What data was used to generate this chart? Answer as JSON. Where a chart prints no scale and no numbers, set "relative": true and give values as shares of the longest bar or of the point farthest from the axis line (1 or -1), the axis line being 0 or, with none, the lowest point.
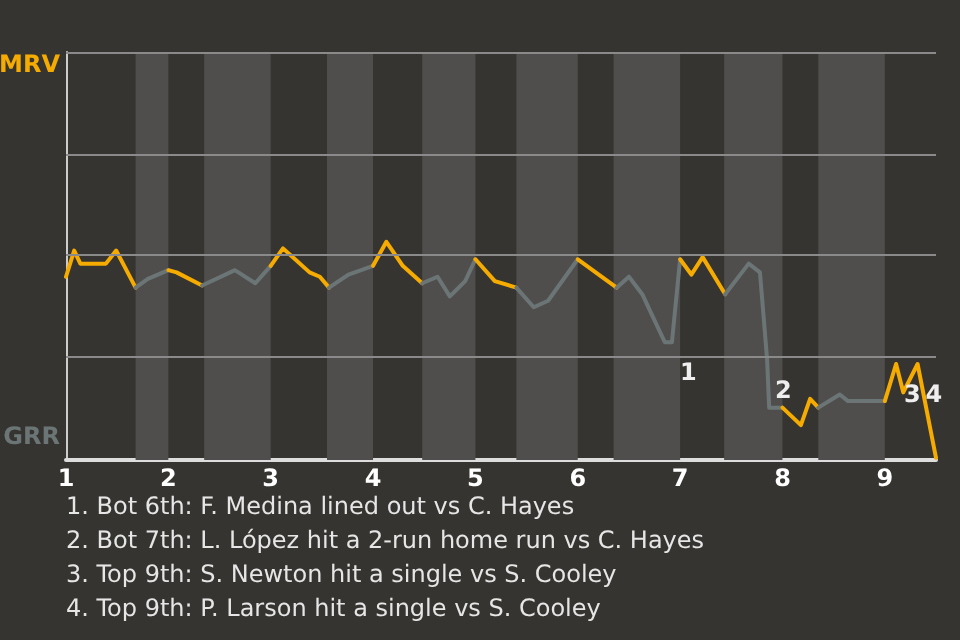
{
  "chart_data": {
    "type": "line",
    "relative": true,
    "xlim": [
      1,
      9.5
    ],
    "xticks": [
      1,
      2,
      3,
      4,
      5,
      6,
      7,
      8,
      9
    ],
    "ref_lines": [
      {
        "axis": "y",
        "value": 0.467,
        "color": "#8a8a8a"
      },
      {
        "axis": "y",
        "value": 0.935,
        "color": "#8a8a8a"
      },
      {
        "axis": "y",
        "value": 1.402,
        "color": "#8a8a8a"
      },
      {
        "axis": "y",
        "value": 1.869,
        "color": "#8a8a8a"
      }
    ],
    "series": [
      {
        "color": "#f5ab00",
        "x": [
          1,
          1.08,
          1.14,
          1.39,
          1.49,
          1.68
        ],
        "values": [
          0.84,
          0.96,
          0.9,
          0.9,
          0.96,
          0.79
        ]
      },
      {
        "color": "#6b7575",
        "x": [
          1.68,
          1.8,
          2
        ],
        "values": [
          0.79,
          0.83,
          0.87
        ]
      },
      {
        "color": "#f5ab00",
        "x": [
          2,
          2.08,
          2.33
        ],
        "values": [
          0.87,
          0.86,
          0.8
        ]
      },
      {
        "color": "#6b7575",
        "x": [
          2.33,
          2.65,
          2.85,
          3
        ],
        "values": [
          0.8,
          0.87,
          0.81,
          0.89
        ]
      },
      {
        "color": "#f5ab00",
        "x": [
          3,
          3.12,
          3.38,
          3.48,
          3.57
        ],
        "values": [
          0.89,
          0.97,
          0.86,
          0.84,
          0.79
        ]
      },
      {
        "color": "#6b7575",
        "x": [
          3.57,
          3.76,
          4
        ],
        "values": [
          0.79,
          0.85,
          0.89
        ]
      },
      {
        "color": "#f5ab00",
        "x": [
          4,
          4.13,
          4.29,
          4.48
        ],
        "values": [
          0.89,
          1,
          0.89,
          0.81
        ]
      },
      {
        "color": "#6b7575",
        "x": [
          4.48,
          4.63,
          4.75,
          4.9,
          5
        ],
        "values": [
          0.81,
          0.84,
          0.75,
          0.82,
          0.92
        ]
      },
      {
        "color": "#f5ab00",
        "x": [
          5,
          5.19,
          5.4
        ],
        "values": [
          0.92,
          0.82,
          0.79
        ]
      },
      {
        "color": "#6b7575",
        "x": [
          5.4,
          5.57,
          5.71,
          6
        ],
        "values": [
          0.79,
          0.7,
          0.73,
          0.92
        ]
      },
      {
        "color": "#f5ab00",
        "x": [
          6,
          6.38
        ],
        "values": [
          0.92,
          0.79
        ]
      },
      {
        "color": "#6b7575",
        "x": [
          6.38,
          6.5,
          6.63,
          6.75,
          6.85,
          6.92,
          7
        ],
        "values": [
          0.79,
          0.84,
          0.76,
          0.64,
          0.54,
          0.54,
          0.92
        ]
      },
      {
        "color": "#f5ab00",
        "x": [
          7,
          7.11,
          7.22,
          7.44
        ],
        "values": [
          0.92,
          0.85,
          0.93,
          0.76
        ]
      },
      {
        "color": "#6b7575",
        "x": [
          7.44,
          7.67,
          7.78,
          7.85,
          7.87,
          8
        ],
        "values": [
          0.76,
          0.9,
          0.86,
          0.46,
          0.24,
          0.24
        ]
      },
      {
        "color": "#f5ab00",
        "x": [
          8,
          8.09,
          8.18,
          8.27,
          8.35
        ],
        "values": [
          0.24,
          0.2,
          0.16,
          0.28,
          0.24
        ]
      },
      {
        "color": "#6b7575",
        "x": [
          8.35,
          8.56,
          8.64,
          9
        ],
        "values": [
          0.24,
          0.3,
          0.27,
          0.27
        ]
      },
      {
        "color": "#f5ab00",
        "x": [
          9,
          9.11,
          9.18,
          9.32,
          9.5
        ],
        "values": [
          0.27,
          0.44,
          0.31,
          0.44,
          0.01
        ]
      }
    ],
    "bands": [
      {
        "axis": "x",
        "from": 1.68,
        "to": 2,
        "color": "#4f4e4c"
      },
      {
        "axis": "x",
        "from": 2.35,
        "to": 3,
        "color": "#4f4e4c"
      },
      {
        "axis": "x",
        "from": 3.55,
        "to": 4,
        "color": "#4f4e4c"
      },
      {
        "axis": "x",
        "from": 4.48,
        "to": 5,
        "color": "#4f4e4c"
      },
      {
        "axis": "x",
        "from": 5.4,
        "to": 6,
        "color": "#4f4e4c"
      },
      {
        "axis": "x",
        "from": 6.35,
        "to": 7,
        "color": "#4f4e4c"
      },
      {
        "axis": "x",
        "from": 7.43,
        "to": 8,
        "color": "#4f4e4c"
      },
      {
        "axis": "x",
        "from": 8.35,
        "to": 9,
        "color": "#4f4e4c"
      }
    ],
    "annotations": [
      "MRV",
      "GRR",
      {
        "text": "1",
        "x": 6.92,
        "y": 0.54
      },
      {
        "text": "2",
        "x": 7.85,
        "y": 0.46
      },
      {
        "text": "3",
        "x": 9.11,
        "y": 0.44
      },
      {
        "text": "4",
        "x": 9.32,
        "y": 0.44
      },
      "1. Bot 6th: F. Medina lined out vs C. Hayes",
      "2. Bot 7th: L. López hit a 2-run home run vs C. Hayes",
      "3. Top 9th: S. Newton hit a single vs S. Cooley",
      "4. Top 9th: P. Larson hit a single vs S. Cooley"
    ]
  }
}
